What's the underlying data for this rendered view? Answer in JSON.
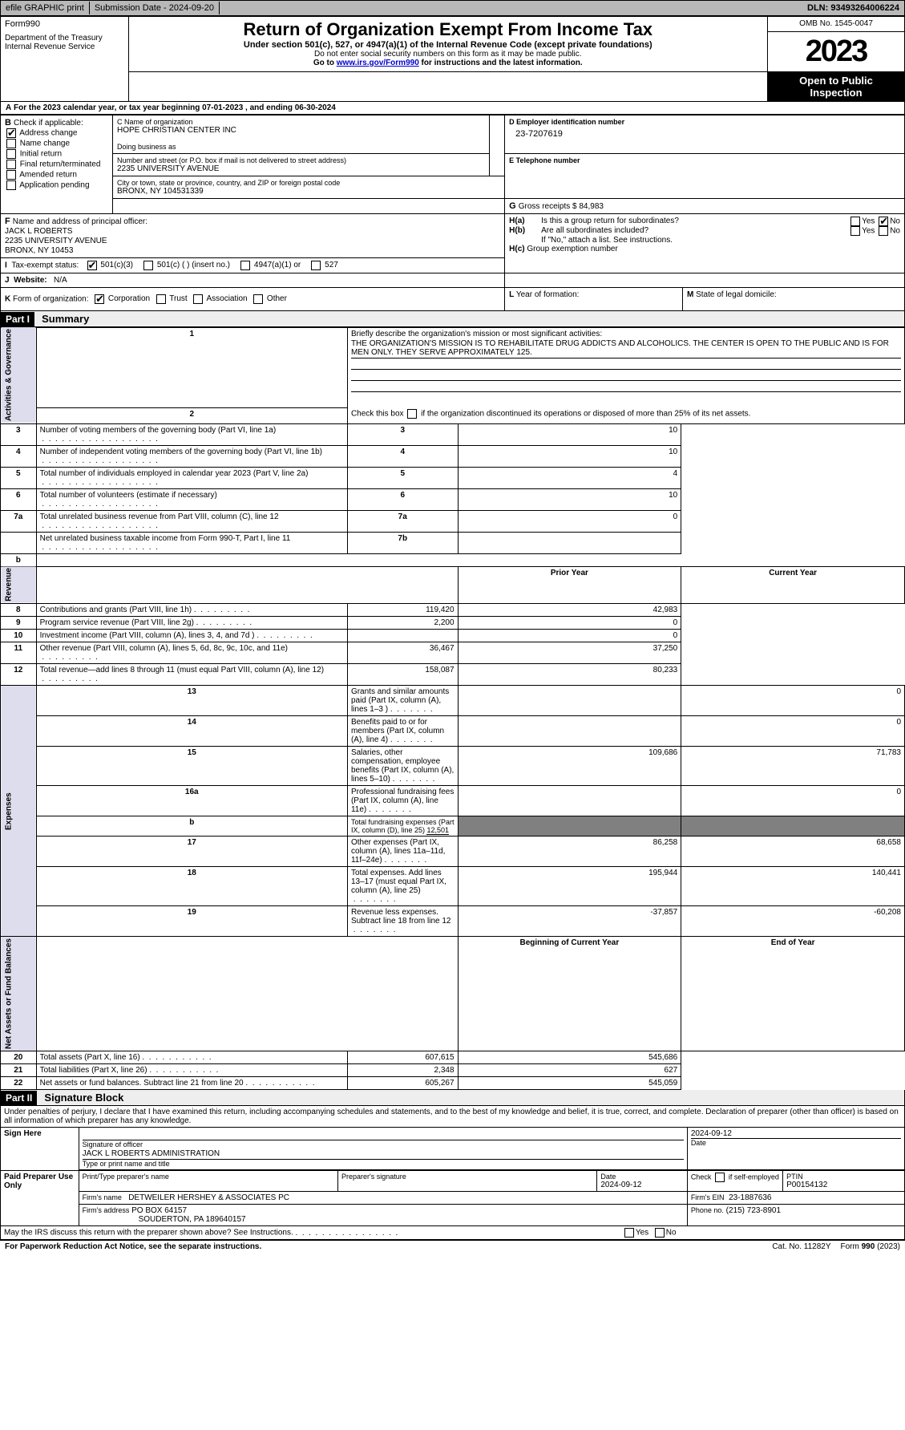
{
  "topbar": {
    "efile": "efile GRAPHIC print",
    "submission": "Submission Date - 2024-09-20",
    "dln": "DLN: 93493264006224"
  },
  "header": {
    "form_word": "Form",
    "form_number": "990",
    "title": "Return of Organization Exempt From Income Tax",
    "subtitle": "Under section 501(c), 527, or 4947(a)(1) of the Internal Revenue Code (except private foundations)",
    "note1": "Do not enter social security numbers on this form as it may be made public.",
    "note2_pre": "Go to ",
    "note2_link": "www.irs.gov/Form990",
    "note2_post": " for instructions and the latest information.",
    "dept": "Department of the Treasury\nInternal Revenue Service",
    "omb": "OMB No. 1545-0047",
    "year": "2023",
    "open": "Open to Public Inspection"
  },
  "A": {
    "prefix": "A",
    "text": "For the 2023 calendar year, or tax year beginning ",
    "begin": "07-01-2023",
    "mid": " , and ending ",
    "end": "06-30-2024"
  },
  "B": {
    "label": "B",
    "check_label": "Check if applicable:",
    "items": [
      {
        "label": "Address change",
        "checked": true
      },
      {
        "label": "Name change",
        "checked": false
      },
      {
        "label": "Initial return",
        "checked": false
      },
      {
        "label": "Final return/terminated",
        "checked": false
      },
      {
        "label": "Amended return",
        "checked": false
      },
      {
        "label": "Application pending",
        "checked": false
      }
    ]
  },
  "C": {
    "name_label": "C Name of organization",
    "name": "HOPE CHRISTIAN CENTER INC",
    "dba_label": "Doing business as",
    "dba": "",
    "addr_label": "Number and street (or P.O. box if mail is not delivered to street address)",
    "addr": "2235 UNIVERSITY AVENUE",
    "room_label": "Room/suite",
    "city_label": "City or town, state or province, country, and ZIP or foreign postal code",
    "city": "BRONX, NY  104531339"
  },
  "D": {
    "label": "D Employer identification number",
    "value": "23-7207619"
  },
  "E": {
    "label": "E Telephone number",
    "value": ""
  },
  "G": {
    "label": "G",
    "text": "Gross receipts $ ",
    "value": "84,983"
  },
  "F": {
    "label": "F",
    "text": "Name and address of principal officer:",
    "name": "JACK L ROBERTS",
    "addr1": "2235 UNIVERSITY AVENUE",
    "addr2": "BRONX, NY  10453"
  },
  "H": {
    "a_label": "H(a)",
    "a_text": "Is this a group return for subordinates?",
    "a_yes": false,
    "a_no": true,
    "b_label": "H(b)",
    "b_text": "Are all subordinates included?",
    "b_note": "If \"No,\" attach a list. See instructions.",
    "c_label": "H(c)",
    "c_text": "Group exemption number",
    "yes": "Yes",
    "no": "No"
  },
  "I": {
    "label": "I",
    "text": "Tax-exempt status:",
    "opts": [
      {
        "label": "501(c)(3)",
        "checked": true
      },
      {
        "label": "501(c) (  ) (insert no.)",
        "checked": false
      },
      {
        "label": "4947(a)(1) or",
        "checked": false
      },
      {
        "label": "527",
        "checked": false
      }
    ]
  },
  "J": {
    "label": "J",
    "text": "Website:",
    "value": "N/A"
  },
  "K": {
    "label": "K",
    "text": "Form of organization:",
    "opts": [
      {
        "label": "Corporation",
        "checked": true
      },
      {
        "label": "Trust",
        "checked": false
      },
      {
        "label": "Association",
        "checked": false
      },
      {
        "label": "Other",
        "checked": false
      }
    ]
  },
  "L": {
    "label": "L",
    "text": "Year of formation:"
  },
  "M": {
    "label": "M",
    "text": "State of legal domicile:"
  },
  "part1": {
    "header": "Part I",
    "title": "Summary",
    "line1_label": "1",
    "line1_text": "Briefly describe the organization's mission or most significant activities:",
    "line1_value": "THE ORGANIZATION'S MISSION IS TO REHABILITATE DRUG ADDICTS AND ALCOHOLICS. THE CENTER IS OPEN TO THE PUBLIC AND IS FOR MEN ONLY. THEY SERVE APPROXIMATELY 125.",
    "line2_label": "2",
    "line2_text": "Check this box ",
    "line2_post": " if the organization discontinued its operations or disposed of more than 25% of its net assets.",
    "side_ag": "Activities & Governance",
    "side_rev": "Revenue",
    "side_exp": "Expenses",
    "side_net": "Net Assets or Fund Balances",
    "rows_ag": [
      {
        "no": "3",
        "text": "Number of voting members of the governing body (Part VI, line 1a)",
        "box": "3",
        "val": "10"
      },
      {
        "no": "4",
        "text": "Number of independent voting members of the governing body (Part VI, line 1b)",
        "box": "4",
        "val": "10"
      },
      {
        "no": "5",
        "text": "Total number of individuals employed in calendar year 2023 (Part V, line 2a)",
        "box": "5",
        "val": "4"
      },
      {
        "no": "6",
        "text": "Total number of volunteers (estimate if necessary)",
        "box": "6",
        "val": "10"
      },
      {
        "no": "7a",
        "text": "Total unrelated business revenue from Part VIII, column (C), line 12",
        "box": "7a",
        "val": "0"
      },
      {
        "no": "",
        "text": "Net unrelated business taxable income from Form 990-T, Part I, line 11",
        "box": "7b",
        "val": ""
      }
    ],
    "b_label": "b",
    "hdr_prior": "Prior Year",
    "hdr_current": "Current Year",
    "rows_rev": [
      {
        "no": "8",
        "text": "Contributions and grants (Part VIII, line 1h)",
        "py": "119,420",
        "cy": "42,983"
      },
      {
        "no": "9",
        "text": "Program service revenue (Part VIII, line 2g)",
        "py": "2,200",
        "cy": "0"
      },
      {
        "no": "10",
        "text": "Investment income (Part VIII, column (A), lines 3, 4, and 7d )",
        "py": "",
        "cy": "0"
      },
      {
        "no": "11",
        "text": "Other revenue (Part VIII, column (A), lines 5, 6d, 8c, 9c, 10c, and 11e)",
        "py": "36,467",
        "cy": "37,250"
      },
      {
        "no": "12",
        "text": "Total revenue—add lines 8 through 11 (must equal Part VIII, column (A), line 12)",
        "py": "158,087",
        "cy": "80,233"
      }
    ],
    "rows_exp": [
      {
        "no": "13",
        "text": "Grants and similar amounts paid (Part IX, column (A), lines 1–3 )",
        "py": "",
        "cy": "0"
      },
      {
        "no": "14",
        "text": "Benefits paid to or for members (Part IX, column (A), line 4)",
        "py": "",
        "cy": "0"
      },
      {
        "no": "15",
        "text": "Salaries, other compensation, employee benefits (Part IX, column (A), lines 5–10)",
        "py": "109,686",
        "cy": "71,783"
      },
      {
        "no": "16a",
        "text": "Professional fundraising fees (Part IX, column (A), line 11e)",
        "py": "",
        "cy": "0"
      }
    ],
    "line_b_no": "b",
    "line_b_text": "Total fundraising expenses (Part IX, column (D), line 25) ",
    "line_b_val": "12,501",
    "rows_exp2": [
      {
        "no": "17",
        "text": "Other expenses (Part IX, column (A), lines 11a–11d, 11f–24e)",
        "py": "86,258",
        "cy": "68,658"
      },
      {
        "no": "18",
        "text": "Total expenses. Add lines 13–17 (must equal Part IX, column (A), line 25)",
        "py": "195,944",
        "cy": "140,441"
      },
      {
        "no": "19",
        "text": "Revenue less expenses. Subtract line 18 from line 12",
        "py": "-37,857",
        "cy": "-60,208"
      }
    ],
    "hdr_begin": "Beginning of Current Year",
    "hdr_end": "End of Year",
    "rows_net": [
      {
        "no": "20",
        "text": "Total assets (Part X, line 16)",
        "py": "607,615",
        "cy": "545,686"
      },
      {
        "no": "21",
        "text": "Total liabilities (Part X, line 26)",
        "py": "2,348",
        "cy": "627"
      },
      {
        "no": "22",
        "text": "Net assets or fund balances. Subtract line 21 from line 20",
        "py": "605,267",
        "cy": "545,059"
      }
    ]
  },
  "part2": {
    "header": "Part II",
    "title": "Signature Block",
    "jurat": "Under penalties of perjury, I declare that I have examined this return, including accompanying schedules and statements, and to the best of my knowledge and belief, it is true, correct, and complete. Declaration of preparer (other than officer) is based on all information of which preparer has any knowledge.",
    "sign_here": "Sign Here",
    "sig_officer_label": "Signature of officer",
    "sig_officer_val": "JACK L ROBERTS  ADMINISTRATION",
    "sig_date": "2024-09-12",
    "type_label": "Type or print name and title",
    "paid": "Paid Preparer Use Only",
    "prep_name_label": "Print/Type preparer's name",
    "prep_sig_label": "Preparer's signature",
    "date_label": "Date",
    "prep_date": "2024-09-12",
    "check_label": "Check",
    "self_emp": "if self-employed",
    "ptin_label": "PTIN",
    "ptin": "P00154132",
    "firm_name_label": "Firm's name",
    "firm_name": "DETWEILER HERSHEY & ASSOCIATES PC",
    "firm_ein_label": "Firm's EIN",
    "firm_ein": "23-1887636",
    "firm_addr_label": "Firm's address",
    "firm_addr1": "PO BOX 64157",
    "firm_addr2": "SOUDERTON, PA  189640157",
    "phone_label": "Phone no.",
    "phone": "(215) 723-8901",
    "discuss": "May the IRS discuss this return with the preparer shown above? See Instructions.",
    "yes": "Yes",
    "no": "No"
  },
  "footer": {
    "paperwork": "For Paperwork Reduction Act Notice, see the separate instructions.",
    "cat": "Cat. No. 11282Y",
    "form": "Form ",
    "form_no": "990",
    "year": " (2023)"
  }
}
